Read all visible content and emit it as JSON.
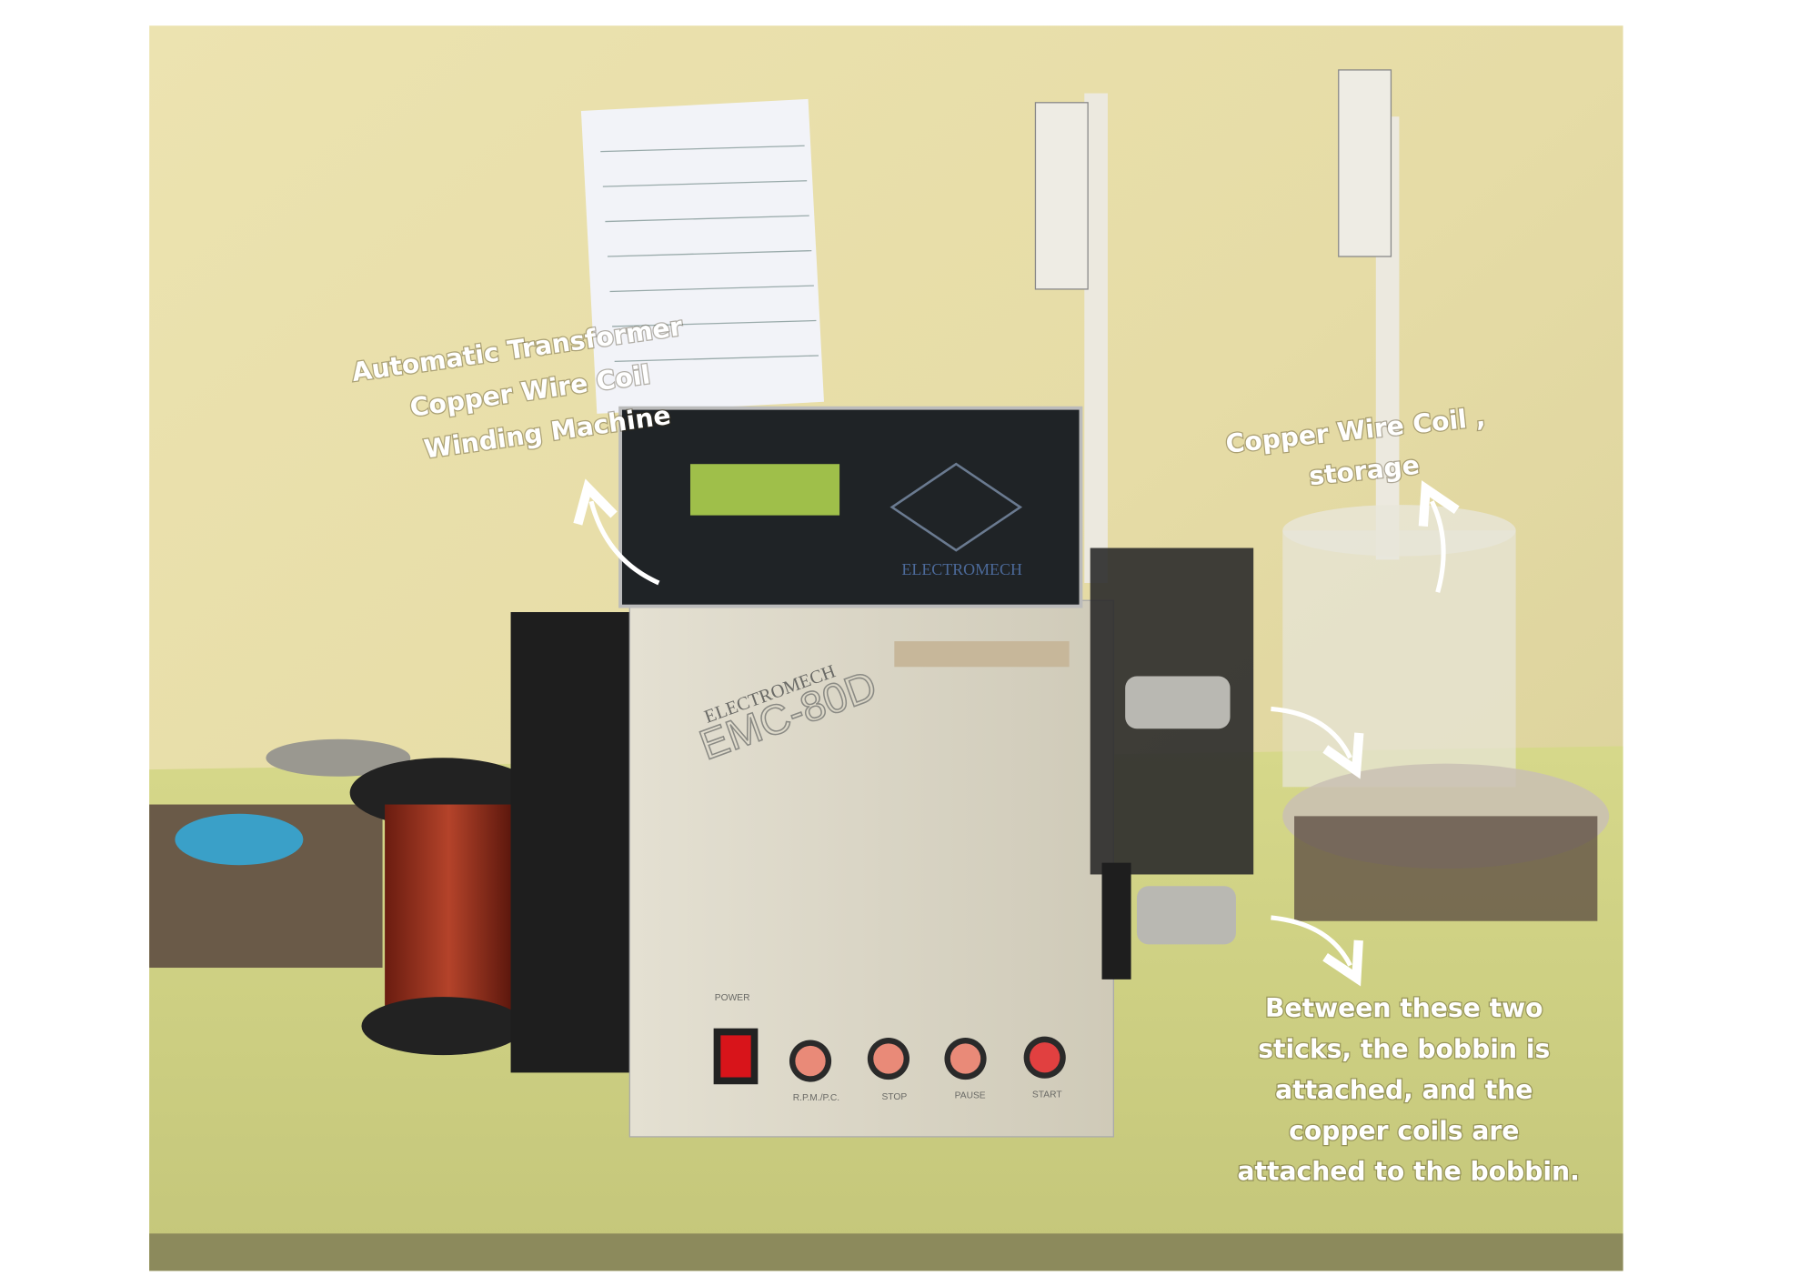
{
  "annotations": [
    {
      "lines": [
        "Automatic Transformer",
        "Copper Wire Coil",
        "Winding Machine"
      ]
    },
    {
      "lines": [
        "Copper Wire Coil ,",
        "storage"
      ]
    },
    {
      "lines": [
        "Between these two",
        "sticks, the bobbin is",
        "attached, and the",
        "copper coils are",
        "attached to the bobbin."
      ]
    }
  ],
  "machine": {
    "controller_brand": "ELECTROMECH",
    "body_brand": "ELECTROMECH",
    "model": "EMC-80D",
    "power_label": "POWER",
    "buttons": [
      "R.P.M./P.C.",
      "STOP",
      "PAUSE",
      "START"
    ]
  }
}
